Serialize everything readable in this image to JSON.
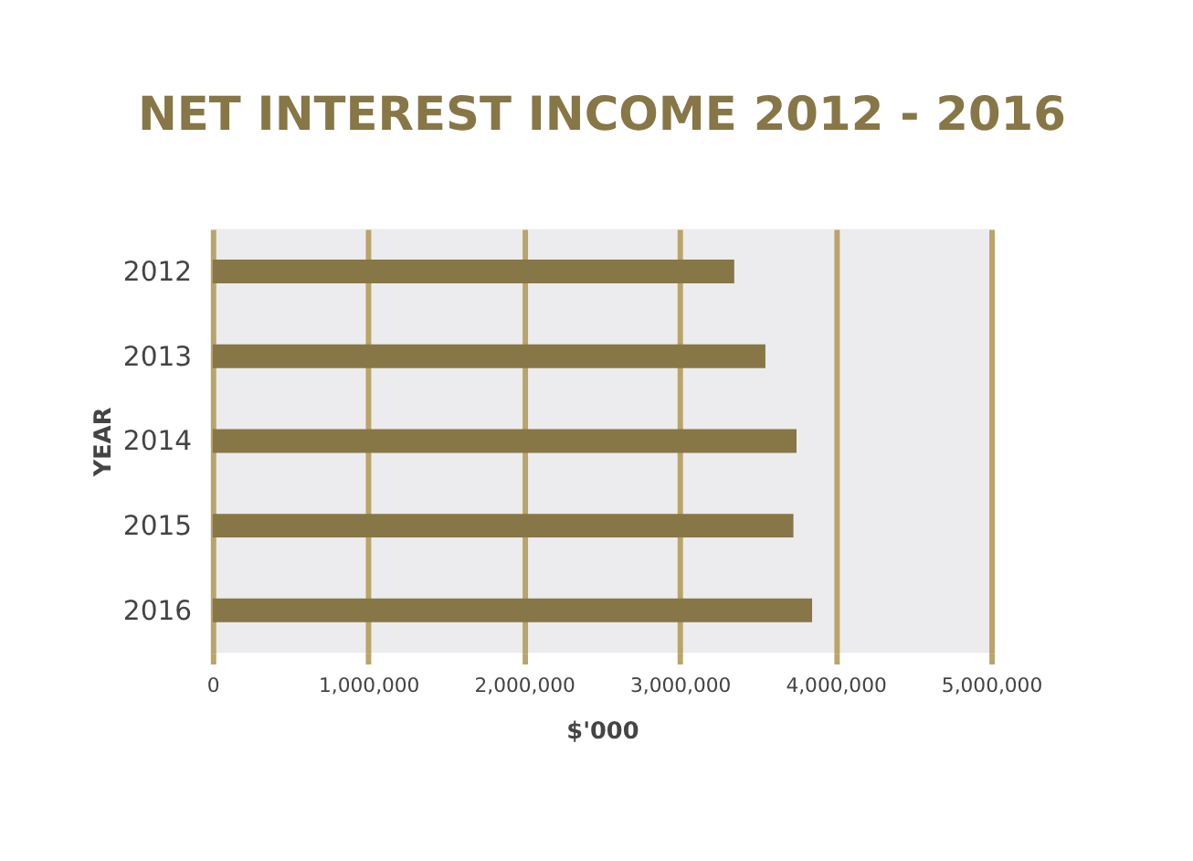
{
  "chart_data": {
    "type": "bar",
    "orientation": "horizontal",
    "title": "NET INTEREST INCOME 2012 - 2016",
    "xlabel": "$'000",
    "ylabel": "YEAR",
    "categories": [
      "2012",
      "2013",
      "2014",
      "2015",
      "2016"
    ],
    "values": [
      3350000,
      3550000,
      3750000,
      3730000,
      3850000
    ],
    "color": "#877746",
    "xlim": [
      0,
      5000000
    ],
    "xticks": [
      0,
      {
        "value": 1000000,
        "label": "1,000,000"
      },
      {
        "value": 2000000,
        "label": "2,000,000"
      },
      {
        "value": 3000000,
        "label": "3,000,000"
      },
      {
        "value": 4000000,
        "label": "4,000,000"
      },
      {
        "value": 5000000,
        "label": "5,000,000"
      }
    ],
    "grid": "x",
    "legend": false
  }
}
